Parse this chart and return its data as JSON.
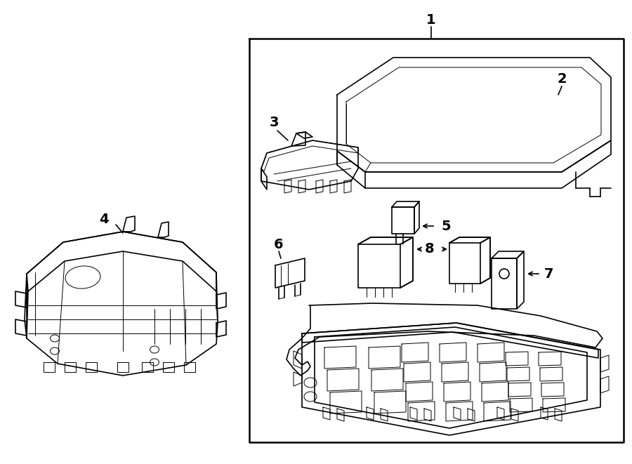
{
  "bg_color": "#ffffff",
  "line_color": "#000000",
  "lw": 1.2,
  "lw_thin": 0.7,
  "fig_width": 9.0,
  "fig_height": 6.61,
  "dpi": 100
}
